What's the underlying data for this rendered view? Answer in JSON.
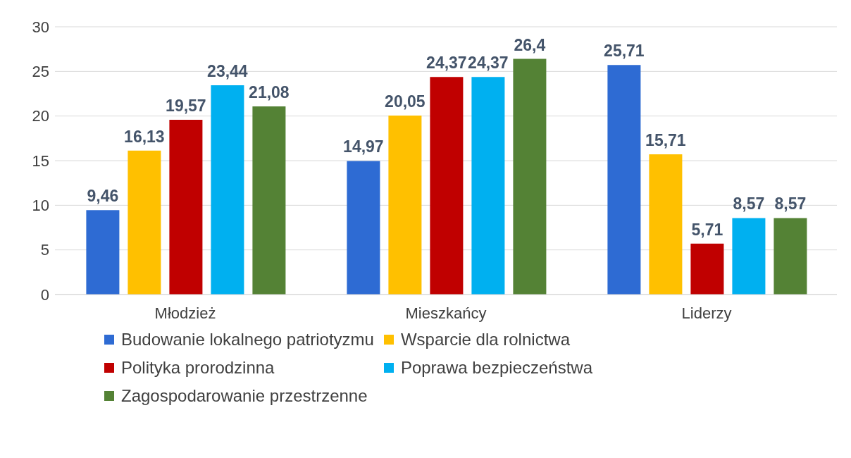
{
  "chart_data": {
    "type": "bar",
    "categories": [
      "Młodzież",
      "Mieszkańcy",
      "Liderzy"
    ],
    "series": [
      {
        "name": "Budowanie lokalnego patriotyzmu",
        "color": "#2e6bd3",
        "values": [
          9.46,
          14.97,
          25.71
        ],
        "value_labels": [
          "9,46",
          "14,97",
          "25,71"
        ]
      },
      {
        "name": "Wsparcie dla rolnictwa",
        "color": "#ffc000",
        "values": [
          16.13,
          20.05,
          15.71
        ],
        "value_labels": [
          "16,13",
          "20,05",
          "15,71"
        ]
      },
      {
        "name": "Polityka prorodzinna",
        "color": "#c00000",
        "values": [
          19.57,
          24.37,
          5.71
        ],
        "value_labels": [
          "19,57",
          "24,37",
          "5,71"
        ]
      },
      {
        "name": "Poprawa bezpieczeństwa",
        "color": "#00b0f0",
        "values": [
          23.44,
          24.37,
          8.57
        ],
        "value_labels": [
          "23,44",
          "24,37",
          "8,57"
        ]
      },
      {
        "name": "Zagospodarowanie przestrzenne",
        "color": "#548235",
        "values": [
          21.08,
          26.4,
          8.57
        ],
        "value_labels": [
          "21,08",
          "26,4",
          "8,57"
        ]
      }
    ],
    "ylim": [
      0,
      30
    ],
    "yticks": [
      0,
      5,
      10,
      15,
      20,
      25,
      30
    ],
    "grid": "y",
    "legend": "bottom"
  }
}
